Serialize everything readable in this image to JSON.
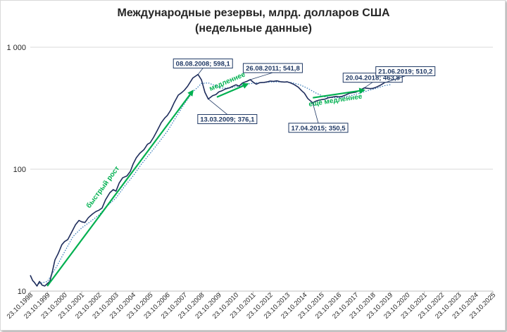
{
  "chart_data": {
    "type": "line",
    "title_line1": "Международные резервы, млрд. долларов США",
    "title_line2": "(недельные данные)",
    "yscale": "log",
    "ylim": [
      10,
      1000
    ],
    "y_ticks": [
      10,
      100,
      1000
    ],
    "y_tick_labels": [
      "10",
      "100",
      "1 000"
    ],
    "x_tick_labels": [
      "23.10.1998",
      "23.10.1999",
      "23.10.2000",
      "23.10.2001",
      "23.10.2002",
      "23.10.2003",
      "23.10.2004",
      "23.10.2005",
      "23.10.2006",
      "23.10.2007",
      "23.10.2008",
      "23.10.2009",
      "23.10.2010",
      "23.10.2011",
      "23.10.2012",
      "23.10.2013",
      "23.10.2014",
      "23.10.2015",
      "23.10.2016",
      "23.10.2017",
      "23.10.2018",
      "23.10.2019",
      "23.10.2020",
      "23.10.2021",
      "23.10.2022",
      "23.10.2023",
      "23.10.2024",
      "23.10.2025"
    ],
    "grid": "horizontal",
    "colors": {
      "series": "#1f2d5c",
      "trend": "#2e75b6",
      "arrow": "#00b050",
      "box_border": "#1f3864",
      "grid": "#d9d9d9",
      "text": "#262626"
    },
    "series": [
      {
        "values": [
          [
            1998.81,
            13.5
          ],
          [
            1998.95,
            12.2
          ],
          [
            1999.05,
            11.8
          ],
          [
            1999.2,
            11.0
          ],
          [
            1999.35,
            12.0
          ],
          [
            1999.5,
            11.2
          ],
          [
            1999.65,
            11.0
          ],
          [
            1999.8,
            11.5
          ],
          [
            1999.95,
            12.0
          ],
          [
            2000.1,
            14.5
          ],
          [
            2000.25,
            18.0
          ],
          [
            2000.45,
            20.5
          ],
          [
            2000.65,
            24.0
          ],
          [
            2000.81,
            25.5
          ],
          [
            2001.0,
            26.5
          ],
          [
            2001.2,
            30.0
          ],
          [
            2001.45,
            35.0
          ],
          [
            2001.65,
            38.0
          ],
          [
            2001.81,
            37.0
          ],
          [
            2002.0,
            36.5
          ],
          [
            2002.2,
            40.0
          ],
          [
            2002.45,
            43.0
          ],
          [
            2002.65,
            45.0
          ],
          [
            2002.81,
            46.0
          ],
          [
            2003.0,
            48.0
          ],
          [
            2003.2,
            56.0
          ],
          [
            2003.45,
            64.0
          ],
          [
            2003.65,
            68.0
          ],
          [
            2003.81,
            66.0
          ],
          [
            2004.0,
            77.0
          ],
          [
            2004.2,
            85.0
          ],
          [
            2004.45,
            88.0
          ],
          [
            2004.65,
            96.0
          ],
          [
            2004.81,
            110.0
          ],
          [
            2005.0,
            124.0
          ],
          [
            2005.2,
            135.0
          ],
          [
            2005.45,
            145.0
          ],
          [
            2005.65,
            160.0
          ],
          [
            2005.81,
            165.0
          ],
          [
            2006.0,
            182.0
          ],
          [
            2006.2,
            205.0
          ],
          [
            2006.45,
            240.0
          ],
          [
            2006.65,
            262.0
          ],
          [
            2006.81,
            276.0
          ],
          [
            2007.0,
            304.0
          ],
          [
            2007.2,
            350.0
          ],
          [
            2007.45,
            405.0
          ],
          [
            2007.65,
            425.0
          ],
          [
            2007.81,
            445.0
          ],
          [
            2008.0,
            480.0
          ],
          [
            2008.3,
            560.0
          ],
          [
            2008.6,
            598.1
          ],
          [
            2008.8,
            540.0
          ],
          [
            2009.0,
            427.0
          ],
          [
            2009.2,
            376.1
          ],
          [
            2009.45,
            400.0
          ],
          [
            2009.65,
            410.0
          ],
          [
            2009.81,
            430.0
          ],
          [
            2010.0,
            440.0
          ],
          [
            2010.2,
            455.0
          ],
          [
            2010.45,
            465.0
          ],
          [
            2010.65,
            480.0
          ],
          [
            2010.81,
            492.0
          ],
          [
            2011.0,
            480.0
          ],
          [
            2011.2,
            510.0
          ],
          [
            2011.45,
            525.0
          ],
          [
            2011.65,
            541.8
          ],
          [
            2011.81,
            518.0
          ],
          [
            2012.0,
            498.0
          ],
          [
            2012.2,
            512.0
          ],
          [
            2012.45,
            515.0
          ],
          [
            2012.65,
            520.0
          ],
          [
            2012.81,
            528.0
          ],
          [
            2013.0,
            525.0
          ],
          [
            2013.2,
            530.0
          ],
          [
            2013.45,
            520.0
          ],
          [
            2013.65,
            518.0
          ],
          [
            2013.81,
            520.0
          ],
          [
            2014.0,
            510.0
          ],
          [
            2014.2,
            495.0
          ],
          [
            2014.45,
            470.0
          ],
          [
            2014.65,
            440.0
          ],
          [
            2014.81,
            420.0
          ],
          [
            2015.0,
            380.0
          ],
          [
            2015.29,
            350.5
          ],
          [
            2015.45,
            360.0
          ],
          [
            2015.65,
            368.0
          ],
          [
            2015.81,
            372.0
          ],
          [
            2016.0,
            375.0
          ],
          [
            2016.2,
            385.0
          ],
          [
            2016.45,
            390.0
          ],
          [
            2016.65,
            395.0
          ],
          [
            2016.81,
            392.0
          ],
          [
            2017.0,
            395.0
          ],
          [
            2017.2,
            405.0
          ],
          [
            2017.45,
            420.0
          ],
          [
            2017.65,
            425.0
          ],
          [
            2017.81,
            428.0
          ],
          [
            2018.0,
            440.0
          ],
          [
            2018.3,
            463.8
          ],
          [
            2018.5,
            460.0
          ],
          [
            2018.65,
            458.0
          ],
          [
            2018.81,
            460.0
          ],
          [
            2019.0,
            470.0
          ],
          [
            2019.2,
            485.0
          ],
          [
            2019.47,
            510.2
          ]
        ]
      },
      {
        "values": [
          [
            1999.3,
            11.5
          ],
          [
            1999.81,
            12.0
          ],
          [
            2000.3,
            15.5
          ],
          [
            2000.81,
            21.0
          ],
          [
            2001.3,
            28.0
          ],
          [
            2001.81,
            33.0
          ],
          [
            2002.3,
            37.0
          ],
          [
            2002.81,
            42.0
          ],
          [
            2003.3,
            50.0
          ],
          [
            2003.81,
            58.0
          ],
          [
            2004.3,
            72.0
          ],
          [
            2004.81,
            88.0
          ],
          [
            2005.3,
            110.0
          ],
          [
            2005.81,
            135.0
          ],
          [
            2006.3,
            165.0
          ],
          [
            2006.81,
            205.0
          ],
          [
            2007.3,
            265.0
          ],
          [
            2007.81,
            345.0
          ],
          [
            2008.3,
            430.0
          ],
          [
            2008.81,
            505.0
          ],
          [
            2009.2,
            510.0
          ],
          [
            2009.6,
            485.0
          ],
          [
            2010.0,
            460.0
          ],
          [
            2010.5,
            465.0
          ],
          [
            2011.0,
            480.0
          ],
          [
            2011.5,
            500.0
          ],
          [
            2012.0,
            510.0
          ],
          [
            2012.5,
            515.0
          ],
          [
            2013.0,
            520.0
          ],
          [
            2013.5,
            520.0
          ],
          [
            2014.0,
            515.0
          ],
          [
            2014.5,
            495.0
          ],
          [
            2015.0,
            460.0
          ],
          [
            2015.5,
            420.0
          ],
          [
            2016.0,
            392.0
          ],
          [
            2016.5,
            385.0
          ],
          [
            2017.0,
            388.0
          ],
          [
            2017.5,
            400.0
          ],
          [
            2018.0,
            418.0
          ],
          [
            2018.5,
            440.0
          ],
          [
            2019.0,
            460.0
          ],
          [
            2019.5,
            485.0
          ],
          [
            2019.9,
            495.0
          ]
        ]
      }
    ],
    "annotations": [
      {
        "label": "08.08.2008; 598,1",
        "x": 2008.6,
        "y": 598.1
      },
      {
        "label": "13.03.2009; 376,1",
        "x": 2009.2,
        "y": 376.1
      },
      {
        "label": "26.08.2011; 541,8",
        "x": 2011.65,
        "y": 541.8
      },
      {
        "label": "17.04.2015; 350,5",
        "x": 2015.29,
        "y": 350.5
      },
      {
        "label": "20.04.2018; 463,8",
        "x": 2018.3,
        "y": 463.8
      },
      {
        "label": "21.06.2019; 510,2",
        "x": 2019.47,
        "y": 510.2
      }
    ],
    "arrows": [
      {
        "label": "быстрый рост",
        "from": [
          1999.8,
          11.0
        ],
        "to": [
          2008.3,
          440.0
        ]
      },
      {
        "label": "медленнее",
        "from": [
          2009.7,
          390.0
        ],
        "to": [
          2011.5,
          500.0
        ]
      },
      {
        "label": "ещё медленнее",
        "from": [
          2015.3,
          385.0
        ],
        "to": [
          2018.3,
          445.0
        ]
      }
    ]
  }
}
